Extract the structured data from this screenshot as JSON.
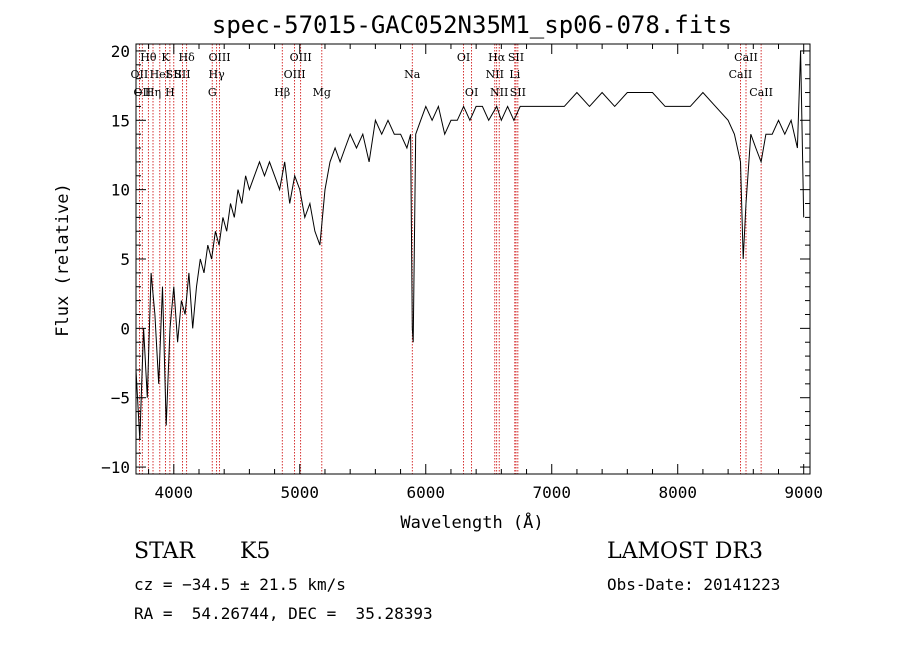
{
  "chart_data": {
    "type": "line",
    "title": "spec-57015-GAC052N35M1_sp06-078.fits",
    "xlabel": "Wavelength (Å)",
    "ylabel": "Flux (relative)",
    "xlim": [
      3700,
      9050
    ],
    "ylim": [
      -10.5,
      20.5
    ],
    "xticks": [
      4000,
      5000,
      6000,
      7000,
      8000,
      9000
    ],
    "yticks": [
      -10,
      -5,
      0,
      5,
      10,
      15,
      20
    ],
    "grid": false,
    "series": [
      {
        "name": "spectrum",
        "x": [
          3700,
          3730,
          3760,
          3790,
          3820,
          3850,
          3880,
          3910,
          3940,
          3970,
          4000,
          4030,
          4060,
          4090,
          4120,
          4150,
          4180,
          4210,
          4240,
          4270,
          4300,
          4330,
          4360,
          4390,
          4420,
          4450,
          4480,
          4510,
          4540,
          4570,
          4600,
          4640,
          4680,
          4720,
          4760,
          4800,
          4840,
          4880,
          4920,
          4960,
          5000,
          5040,
          5080,
          5120,
          5160,
          5200,
          5240,
          5280,
          5320,
          5360,
          5400,
          5450,
          5500,
          5550,
          5600,
          5650,
          5700,
          5750,
          5800,
          5850,
          5880,
          5893,
          5900,
          5920,
          5960,
          6000,
          6050,
          6100,
          6150,
          6200,
          6250,
          6300,
          6350,
          6400,
          6450,
          6500,
          6563,
          6600,
          6650,
          6700,
          6750,
          6800,
          6900,
          7000,
          7100,
          7200,
          7300,
          7400,
          7500,
          7600,
          7700,
          7800,
          7900,
          8000,
          8100,
          8200,
          8300,
          8400,
          8450,
          8498,
          8520,
          8542,
          8580,
          8620,
          8662,
          8700,
          8750,
          8800,
          8850,
          8900,
          8950,
          8975,
          9000
        ],
        "values": [
          -3,
          -8,
          0,
          -5,
          4,
          1,
          -4,
          3,
          -7,
          0,
          3,
          -1,
          2,
          1,
          4,
          0,
          3,
          5,
          4,
          6,
          5,
          7,
          6,
          8,
          7,
          9,
          8,
          10,
          9,
          11,
          10,
          11,
          12,
          11,
          12,
          11,
          10,
          12,
          9,
          11,
          10,
          8,
          9,
          7,
          6,
          10,
          12,
          13,
          12,
          13,
          14,
          13,
          14,
          12,
          15,
          14,
          15,
          14,
          14,
          13,
          14,
          0,
          -1,
          14,
          15,
          16,
          15,
          16,
          14,
          15,
          15,
          16,
          15,
          16,
          16,
          15,
          16,
          15,
          16,
          15,
          16,
          16,
          16,
          16,
          16,
          17,
          16,
          17,
          16,
          17,
          17,
          17,
          16,
          16,
          16,
          17,
          16,
          15,
          14,
          12,
          5,
          9,
          14,
          13,
          12,
          14,
          14,
          15,
          14,
          15,
          13,
          20,
          8
        ]
      }
    ],
    "lines": [
      {
        "wavelength": 3727,
        "label": "OII",
        "row": 1
      },
      {
        "wavelength": 3750,
        "label": "OII",
        "row": 2
      },
      {
        "wavelength": 3798,
        "label": "Hθ",
        "row": 0
      },
      {
        "wavelength": 3835,
        "label": "Hη",
        "row": 2
      },
      {
        "wavelength": 3889,
        "label": "HeI",
        "row": 1
      },
      {
        "wavelength": 3934,
        "label": "K",
        "row": 0
      },
      {
        "wavelength": 3969,
        "label": "H",
        "row": 2
      },
      {
        "wavelength": 4000,
        "label": "SII",
        "row": 1
      },
      {
        "wavelength": 4069,
        "label": "SII",
        "row": 1
      },
      {
        "wavelength": 4102,
        "label": "Hδ",
        "row": 0
      },
      {
        "wavelength": 4305,
        "label": "G",
        "row": 2
      },
      {
        "wavelength": 4340,
        "label": "Hγ",
        "row": 1
      },
      {
        "wavelength": 4363,
        "label": "OIII",
        "row": 0
      },
      {
        "wavelength": 4861,
        "label": "Hβ",
        "row": 2
      },
      {
        "wavelength": 4959,
        "label": "OIII",
        "row": 1
      },
      {
        "wavelength": 5007,
        "label": "OIII",
        "row": 0
      },
      {
        "wavelength": 5175,
        "label": "Mg",
        "row": 2
      },
      {
        "wavelength": 5893,
        "label": "Na",
        "row": 1
      },
      {
        "wavelength": 6300,
        "label": "OI",
        "row": 0
      },
      {
        "wavelength": 6364,
        "label": "OI",
        "row": 2
      },
      {
        "wavelength": 6548,
        "label": "NII",
        "row": 1
      },
      {
        "wavelength": 6563,
        "label": "Hα",
        "row": 0
      },
      {
        "wavelength": 6583,
        "label": "NII",
        "row": 2
      },
      {
        "wavelength": 6707,
        "label": "Li",
        "row": 1
      },
      {
        "wavelength": 6716,
        "label": "SII",
        "row": 0
      },
      {
        "wavelength": 6731,
        "label": "SII",
        "row": 2
      },
      {
        "wavelength": 8498,
        "label": "CaII",
        "row": 1
      },
      {
        "wavelength": 8542,
        "label": "CaII",
        "row": 0
      },
      {
        "wavelength": 8662,
        "label": "CaII",
        "row": 2
      }
    ]
  },
  "info": {
    "class_label": "STAR",
    "subclass": "K5",
    "cz": "cz = −34.5 ± 21.5 km/s",
    "coords": "RA =  54.26744, DEC =  35.28393",
    "survey": "LAMOST DR3",
    "obs_date": "Obs-Date: 20141223"
  },
  "colors": {
    "line_marker": "#cc0000",
    "spectrum": "#000000",
    "axes": "#000000"
  }
}
